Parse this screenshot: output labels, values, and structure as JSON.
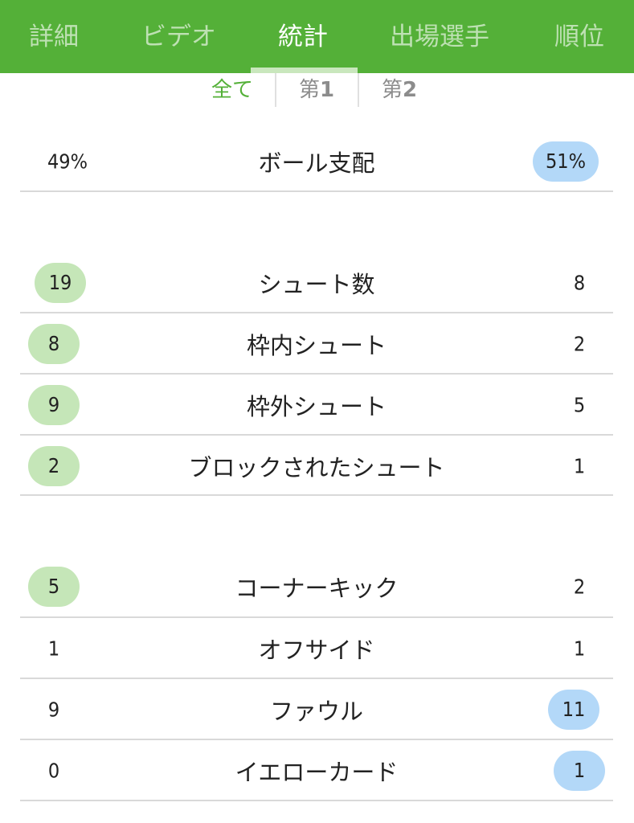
{
  "tabs": [
    {
      "label": "詳細"
    },
    {
      "label": "ビデオ"
    },
    {
      "label": "統計"
    },
    {
      "label": "出場選手"
    },
    {
      "label": "順位"
    }
  ],
  "active_tab": "統計",
  "periods": {
    "all": "全て",
    "first_prefix": "第",
    "first_num": "1",
    "second_prefix": "第",
    "second_num": "2"
  },
  "active_period": "全て",
  "stats": {
    "possession": {
      "label": "ボール支配",
      "home": "49%",
      "away": "51%"
    },
    "shots": {
      "label": "シュート数",
      "home": "19",
      "away": "8"
    },
    "shots_on_target": {
      "label": "枠内シュート",
      "home": "8",
      "away": "2"
    },
    "shots_off_target": {
      "label": "枠外シュート",
      "home": "9",
      "away": "5"
    },
    "blocked_shots": {
      "label": "ブロックされたシュート",
      "home": "2",
      "away": "1"
    },
    "corners": {
      "label": "コーナーキック",
      "home": "5",
      "away": "2"
    },
    "offsides": {
      "label": "オフサイド",
      "home": "1",
      "away": "1"
    },
    "fouls": {
      "label": "ファウル",
      "home": "9",
      "away": "11"
    },
    "yellow_cards": {
      "label": "イエローカード",
      "home": "0",
      "away": "1"
    }
  },
  "colors": {
    "header_green": "#54b038",
    "home_highlight": "#c5e6b8",
    "away_highlight": "#b3d8f8",
    "active_period": "#54b038"
  }
}
